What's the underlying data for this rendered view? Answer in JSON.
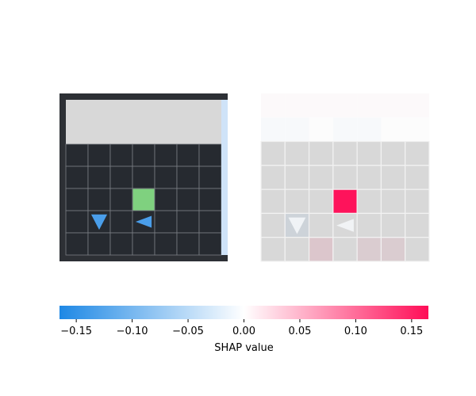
{
  "grid": {
    "rows": 7,
    "cols": 7
  },
  "colors": {
    "wall": "#2d3035",
    "floor": "#262a30",
    "grid_line": "#7a7e84",
    "unseen": "#d8d8d8",
    "goal": "#7fd17f",
    "agent": "#4a9eea",
    "edge_highlight": "#cfe3f8",
    "shap_negative": "#1e88e5",
    "shap_positive": "#ff0d57"
  },
  "observation": {
    "unseen_rows": 2,
    "goal": {
      "row": 4,
      "col": 3
    },
    "agents": [
      {
        "row": 5,
        "col": 1,
        "direction": "down"
      },
      {
        "row": 5,
        "col": 3,
        "direction": "left"
      }
    ]
  },
  "shap_map": {
    "values": [
      [
        0.002,
        0.002,
        0.002,
        0.002,
        0.002,
        0.002,
        0.002
      ],
      [
        -0.004,
        -0.004,
        0.0,
        -0.004,
        -0.004,
        0.0,
        0.0
      ],
      [
        0,
        0,
        0,
        0,
        0,
        0,
        0
      ],
      [
        0,
        0,
        0,
        0,
        0,
        0,
        0
      ],
      [
        0,
        0,
        0,
        0.16,
        0,
        0,
        0
      ],
      [
        0,
        -0.01,
        0,
        0,
        0,
        0,
        0
      ],
      [
        0,
        0,
        0.015,
        0,
        0.01,
        0.01,
        0
      ]
    ],
    "icons": [
      {
        "row": 5,
        "col": 1,
        "direction": "down"
      },
      {
        "row": 5,
        "col": 3,
        "direction": "left"
      }
    ]
  },
  "colorbar": {
    "min": -0.165,
    "max": 0.165,
    "ticks": [
      -0.15,
      -0.1,
      -0.05,
      0.0,
      0.05,
      0.1,
      0.15
    ],
    "tick_labels": [
      "−0.15",
      "−0.10",
      "−0.05",
      "0.00",
      "0.05",
      "0.10",
      "0.15"
    ],
    "label": "SHAP value"
  }
}
